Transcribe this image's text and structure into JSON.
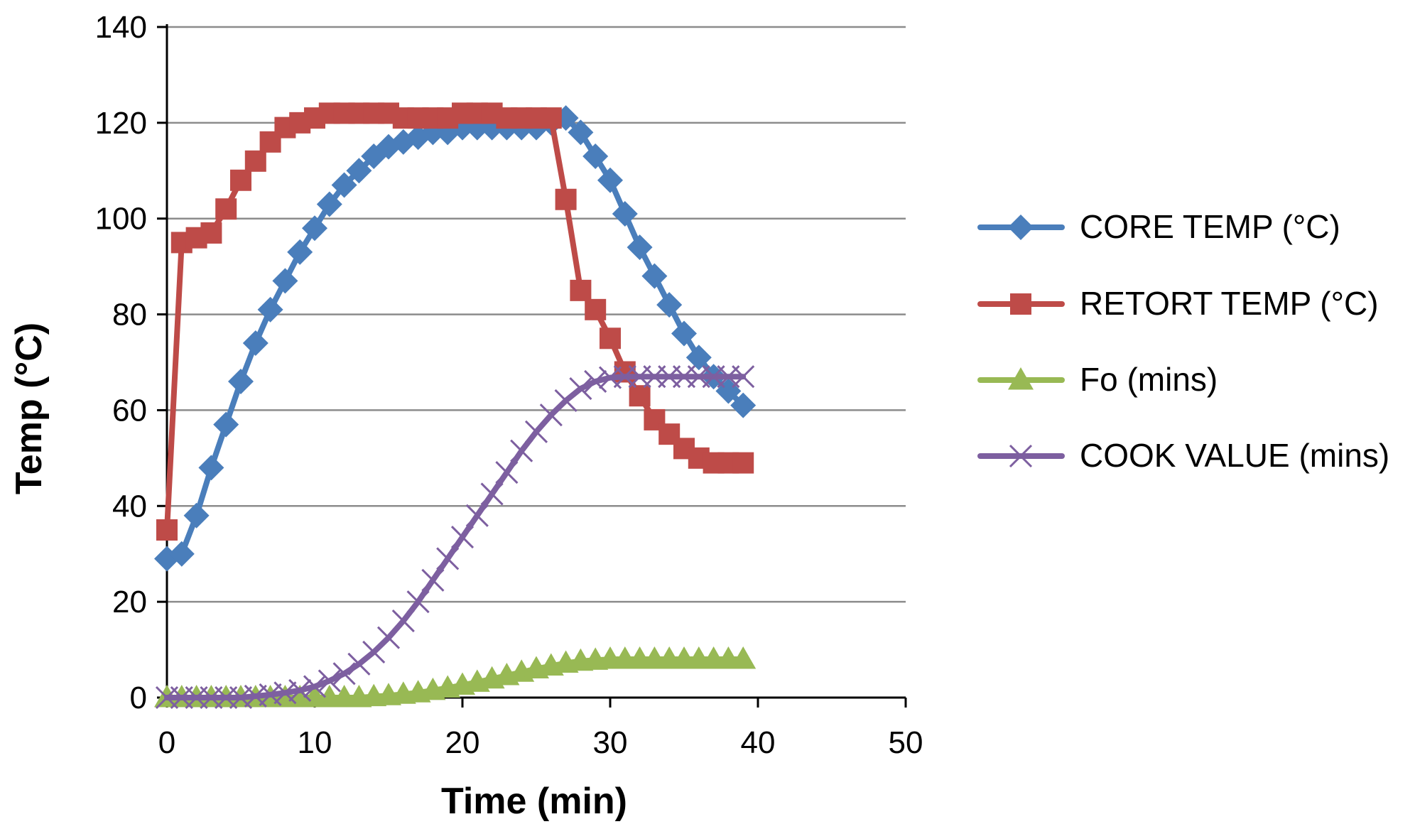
{
  "chart_data": {
    "type": "line",
    "title": "",
    "xlabel": "Time  (min)",
    "ylabel": "Temp (°C)",
    "xlim": [
      0,
      50
    ],
    "ylim": [
      0,
      140
    ],
    "xticks": [
      0,
      10,
      20,
      30,
      40,
      50
    ],
    "yticks": [
      0,
      20,
      40,
      60,
      80,
      100,
      120,
      140
    ],
    "grid": "horizontal",
    "legend_position": "right",
    "series": [
      {
        "name": "CORE TEMP (°C)",
        "color": "#4a7ebb",
        "marker": "diamond",
        "x": [
          0,
          1,
          2,
          3,
          4,
          5,
          6,
          7,
          8,
          9,
          10,
          11,
          12,
          13,
          14,
          15,
          16,
          17,
          18,
          19,
          20,
          21,
          22,
          23,
          24,
          25,
          26,
          27,
          28,
          29,
          30,
          31,
          32,
          33,
          34,
          35,
          36,
          37,
          38,
          39
        ],
        "values": [
          29,
          30,
          38,
          48,
          57,
          66,
          74,
          81,
          87,
          93,
          98,
          103,
          107,
          110,
          113,
          115,
          116,
          117,
          118,
          118,
          119,
          119,
          119,
          119,
          119,
          119,
          120,
          121,
          118,
          113,
          108,
          101,
          94,
          88,
          82,
          76,
          71,
          67,
          64,
          61
        ]
      },
      {
        "name": "RETORT TEMP (°C)",
        "color": "#be4b48",
        "marker": "square",
        "x": [
          0,
          1,
          2,
          3,
          4,
          5,
          6,
          7,
          8,
          9,
          10,
          11,
          12,
          13,
          14,
          15,
          16,
          17,
          18,
          19,
          20,
          21,
          22,
          23,
          24,
          25,
          26,
          27,
          28,
          29,
          30,
          31,
          32,
          33,
          34,
          35,
          36,
          37,
          38,
          39
        ],
        "values": [
          35,
          95,
          96,
          97,
          102,
          108,
          112,
          116,
          119,
          120,
          121,
          122,
          122,
          122,
          122,
          122,
          121,
          121,
          121,
          121,
          122,
          122,
          122,
          121,
          121,
          121,
          121,
          104,
          85,
          81,
          75,
          68,
          63,
          58,
          55,
          52,
          50,
          49,
          49,
          49
        ]
      },
      {
        "name": "Fo (mins)",
        "color": "#98b954",
        "marker": "triangle",
        "x": [
          0,
          1,
          2,
          3,
          4,
          5,
          6,
          7,
          8,
          9,
          10,
          11,
          12,
          13,
          14,
          15,
          16,
          17,
          18,
          19,
          20,
          21,
          22,
          23,
          24,
          25,
          26,
          27,
          28,
          29,
          30,
          31,
          32,
          33,
          34,
          35,
          36,
          37,
          38,
          39
        ],
        "values": [
          0,
          0,
          0,
          0,
          0,
          0,
          0,
          0,
          0,
          0,
          0,
          0,
          0,
          0,
          0.2,
          0.4,
          0.7,
          1,
          1.5,
          2,
          2.6,
          3.2,
          3.9,
          4.6,
          5.3,
          6,
          6.6,
          7.2,
          7.6,
          7.8,
          8,
          8,
          8,
          8,
          8,
          8,
          8,
          8,
          8,
          8
        ]
      },
      {
        "name": "COOK VALUE (mins)",
        "color": "#7d5fa0",
        "marker": "x",
        "x": [
          0,
          1,
          2,
          3,
          4,
          5,
          6,
          7,
          8,
          9,
          10,
          11,
          12,
          13,
          14,
          15,
          16,
          17,
          18,
          19,
          20,
          21,
          22,
          23,
          24,
          25,
          26,
          27,
          28,
          29,
          30,
          31,
          32,
          33,
          34,
          35,
          36,
          37,
          38,
          39
        ],
        "values": [
          0,
          0,
          0,
          0,
          0,
          0,
          0.3,
          0.6,
          1,
          1.5,
          2.3,
          3.5,
          5,
          7,
          9.5,
          12.5,
          16,
          20,
          24.5,
          29,
          33.5,
          38,
          42.5,
          47,
          51.5,
          55.5,
          59,
          62,
          64.5,
          66,
          66.8,
          67,
          67,
          67,
          67,
          67,
          67,
          67,
          67,
          67
        ]
      }
    ]
  }
}
